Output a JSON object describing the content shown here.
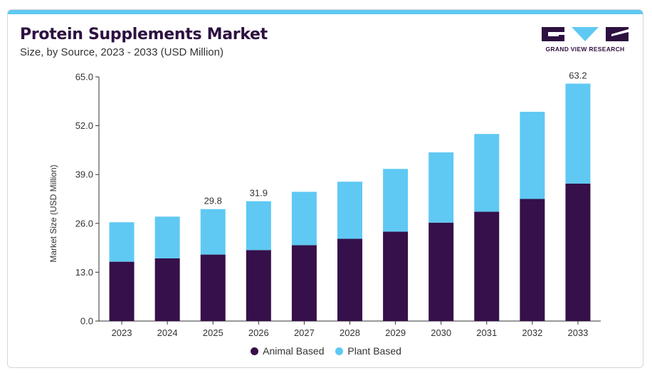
{
  "header": {
    "title": "Protein Supplements Market",
    "subtitle": "Size, by Source, 2023 - 2033 (USD Million)"
  },
  "logo": {
    "text": "GRAND VIEW RESEARCH"
  },
  "colors": {
    "animal": "#35104a",
    "plant": "#5fc9f3",
    "accent_bar": "#5fc9f3",
    "title": "#2d1040"
  },
  "chart_data": {
    "type": "bar",
    "stacked": true,
    "categories": [
      "2023",
      "2024",
      "2025",
      "2026",
      "2027",
      "2028",
      "2029",
      "2030",
      "2031",
      "2032",
      "2033"
    ],
    "series": [
      {
        "name": "Animal Based",
        "values": [
          15.8,
          16.7,
          17.7,
          18.9,
          20.2,
          21.9,
          23.8,
          26.2,
          29.1,
          32.5,
          36.6
        ]
      },
      {
        "name": "Plant Based",
        "values": [
          10.5,
          11.1,
          12.1,
          13.0,
          14.2,
          15.2,
          16.7,
          18.7,
          20.7,
          23.2,
          26.6
        ]
      }
    ],
    "total_labels": {
      "2025": "29.8",
      "2026": "31.9",
      "2033": "63.2"
    },
    "ylabel": "Market Size (USD Million)",
    "xlabel": "",
    "ylim": [
      0,
      65
    ],
    "yticks": [
      "0.0",
      "13.0",
      "26.0",
      "39.0",
      "52.0",
      "65.0"
    ],
    "ytick_values": [
      0,
      13,
      26,
      39,
      52,
      65
    ],
    "grid": false,
    "legend": "bottom-center"
  }
}
